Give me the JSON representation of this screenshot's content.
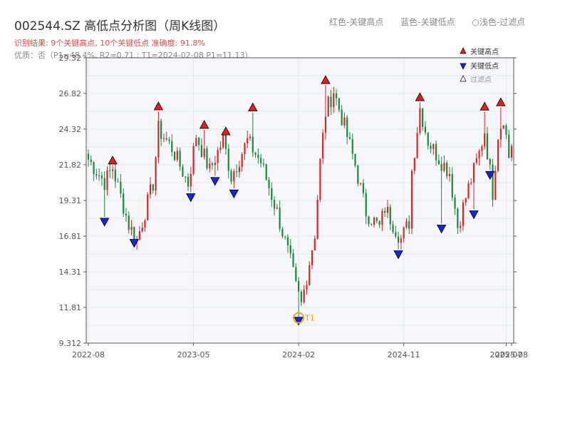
{
  "header": {
    "title": "002544.SZ 高低点分析图（周K线图）",
    "summary": "识别结果: 9个关键高点, 10个关键低点   准确度: 91.8%",
    "quality": "优质：否（P1=48.4%, R2=0.71 ; T1=2024-02-08 P1=11.13）",
    "legend_red": "红色-关键高点",
    "legend_blue": "蓝色-关键低点",
    "legend_light": "○浅色-过滤点"
  },
  "colors": {
    "up": "#d62728",
    "down": "#1a8a3a",
    "key_high": "#e02020",
    "key_low": "#1428d8",
    "filtered": "#ffffff",
    "t1": "#f0a020",
    "plot_bg": "#f5f7fa",
    "grid": "#e4e7ec",
    "axis": "#555555"
  },
  "chart_data": {
    "type": "candlestick",
    "title": "002544.SZ 高低点分析图（周K线图）",
    "ylim": [
      9.312,
      29.32
    ],
    "y_ticks": [
      "29.32",
      "26.82",
      "24.32",
      "21.82",
      "19.31",
      "16.81",
      "14.31",
      "11.81",
      "9.312"
    ],
    "y_tick_values": [
      29.32,
      26.82,
      24.32,
      21.82,
      19.31,
      16.81,
      14.31,
      11.81,
      9.312
    ],
    "x_ticks": [
      "2022-08",
      "2023-05",
      "2024-02",
      "2024-11",
      "2025-07",
      "2025-08"
    ],
    "x_tick_positions": [
      0,
      39,
      78,
      117,
      155,
      157
    ],
    "candle_count": 158,
    "trend_anchors": [
      [
        0,
        22.2
      ],
      [
        6,
        20.6
      ],
      [
        9,
        21.6
      ],
      [
        15,
        17.6
      ],
      [
        18,
        16.5
      ],
      [
        24,
        20.5
      ],
      [
        26,
        24.3
      ],
      [
        31,
        23.0
      ],
      [
        37,
        20.5
      ],
      [
        40,
        23.9
      ],
      [
        45,
        21.4
      ],
      [
        50,
        23.6
      ],
      [
        53,
        21.0
      ],
      [
        59,
        23.5
      ],
      [
        64,
        22.0
      ],
      [
        70,
        18.5
      ],
      [
        75,
        15.0
      ],
      [
        77,
        13.2
      ],
      [
        79,
        12.0
      ],
      [
        84,
        17.0
      ],
      [
        86,
        22.0
      ],
      [
        88,
        25.5
      ],
      [
        91,
        27.0
      ],
      [
        95,
        24.5
      ],
      [
        99,
        21.8
      ],
      [
        103,
        18.5
      ],
      [
        108,
        17.4
      ],
      [
        110,
        18.8
      ],
      [
        116,
        16.6
      ],
      [
        119,
        17.8
      ],
      [
        120,
        21.4
      ],
      [
        123,
        25.8
      ],
      [
        126,
        23.5
      ],
      [
        130,
        22.3
      ],
      [
        134,
        21.3
      ],
      [
        137,
        17.5
      ],
      [
        141,
        20.2
      ],
      [
        145,
        22.6
      ],
      [
        147,
        24.2
      ],
      [
        150,
        19.9
      ],
      [
        152,
        24.0
      ],
      [
        154,
        25.2
      ],
      [
        156,
        22.4
      ],
      [
        157,
        23.3
      ]
    ],
    "key_highs": [
      {
        "i": 9,
        "v": 21.82
      },
      {
        "i": 26,
        "v": 25.62
      },
      {
        "i": 43,
        "v": 24.32
      },
      {
        "i": 51,
        "v": 23.86
      },
      {
        "i": 61,
        "v": 25.54
      },
      {
        "i": 88,
        "v": 27.46
      },
      {
        "i": 123,
        "v": 26.26
      },
      {
        "i": 147,
        "v": 25.6
      },
      {
        "i": 153,
        "v": 25.9
      }
    ],
    "key_lows": [
      {
        "i": 6,
        "v": 18.12
      },
      {
        "i": 17,
        "v": 16.64
      },
      {
        "i": 38,
        "v": 19.84
      },
      {
        "i": 47,
        "v": 20.98
      },
      {
        "i": 54,
        "v": 20.1
      },
      {
        "i": 78,
        "v": 11.18
      },
      {
        "i": 115,
        "v": 15.84
      },
      {
        "i": 131,
        "v": 17.64
      },
      {
        "i": 143,
        "v": 18.64
      },
      {
        "i": 149,
        "v": 21.4
      }
    ],
    "t1": {
      "i": 78,
      "v": 11.13,
      "label": "T1"
    },
    "legend": [
      "关键高点",
      "关键低点",
      "过滤点"
    ]
  }
}
